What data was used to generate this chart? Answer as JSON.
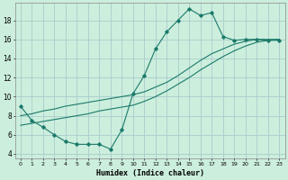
{
  "title": "",
  "xlabel": "Humidex (Indice chaleur)",
  "bg_color": "#cceedd",
  "grid_color": "#aacccc",
  "line_color": "#1a7a6a",
  "xlim": [
    -0.5,
    23.5
  ],
  "ylim": [
    3.5,
    19.8
  ],
  "xticks": [
    0,
    1,
    2,
    3,
    4,
    5,
    6,
    7,
    8,
    9,
    10,
    11,
    12,
    13,
    14,
    15,
    16,
    17,
    18,
    19,
    20,
    21,
    22,
    23
  ],
  "yticks": [
    4,
    6,
    8,
    10,
    12,
    14,
    16,
    18
  ],
  "curve1_x": [
    0,
    1,
    2,
    3,
    4,
    5,
    6,
    7,
    8,
    9,
    10,
    11,
    12,
    13,
    14,
    15,
    16,
    17,
    18,
    19,
    20,
    21,
    22,
    23
  ],
  "curve1_y": [
    9.0,
    7.5,
    6.8,
    6.0,
    5.3,
    5.0,
    5.0,
    5.0,
    4.5,
    6.5,
    10.3,
    12.2,
    15.0,
    16.8,
    18.0,
    19.2,
    18.5,
    18.8,
    16.3,
    15.9,
    16.0,
    16.0,
    15.9,
    15.9
  ],
  "curve2_x": [
    0,
    1,
    2,
    3,
    4,
    5,
    6,
    7,
    8,
    9,
    10,
    11,
    12,
    13,
    14,
    15,
    16,
    17,
    18,
    19,
    20,
    21,
    22,
    23
  ],
  "curve2_y": [
    8.0,
    8.2,
    8.5,
    8.7,
    9.0,
    9.2,
    9.4,
    9.6,
    9.8,
    10.0,
    10.2,
    10.5,
    11.0,
    11.5,
    12.2,
    13.0,
    13.8,
    14.5,
    15.0,
    15.5,
    15.8,
    16.0,
    16.0,
    16.0
  ],
  "curve3_x": [
    0,
    1,
    2,
    3,
    4,
    5,
    6,
    7,
    8,
    9,
    10,
    11,
    12,
    13,
    14,
    15,
    16,
    17,
    18,
    19,
    20,
    21,
    22,
    23
  ],
  "curve3_y": [
    7.0,
    7.2,
    7.4,
    7.6,
    7.8,
    8.0,
    8.2,
    8.5,
    8.7,
    8.9,
    9.1,
    9.5,
    10.0,
    10.6,
    11.3,
    12.0,
    12.8,
    13.5,
    14.2,
    14.8,
    15.3,
    15.7,
    15.9,
    16.0
  ]
}
